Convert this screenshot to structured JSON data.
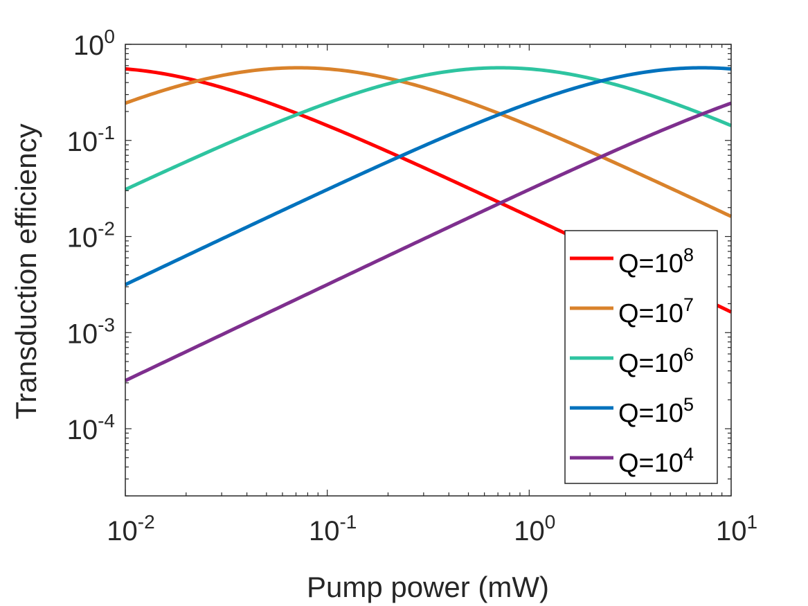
{
  "chart_data": {
    "type": "line",
    "title": "",
    "xlabel": "Pump power (mW)",
    "ylabel": "Transduction efficiency",
    "xscale": "log",
    "yscale": "log",
    "xlim": [
      0.01,
      10
    ],
    "ylim": [
      2e-05,
      1
    ],
    "grid": false,
    "legend_location": "bottom-right",
    "x_ticks": [
      {
        "value": 0.01,
        "base": "10",
        "exp": "-2"
      },
      {
        "value": 0.1,
        "base": "10",
        "exp": "-1"
      },
      {
        "value": 1,
        "base": "10",
        "exp": "0"
      },
      {
        "value": 10,
        "base": "10",
        "exp": "1"
      }
    ],
    "y_ticks": [
      {
        "value": 1,
        "base": "10",
        "exp": "0"
      },
      {
        "value": 0.1,
        "base": "10",
        "exp": "-1"
      },
      {
        "value": 0.01,
        "base": "10",
        "exp": "-2"
      },
      {
        "value": 0.001,
        "base": "10",
        "exp": "-3"
      },
      {
        "value": 0.0001,
        "base": "10",
        "exp": "-4"
      }
    ],
    "curve_model": "eta(P) = 0.57 * 4r/(1+r)^2, r = P/P_opt",
    "series": [
      {
        "name": "Q=10^8",
        "label_base": "Q=10",
        "label_exp": "8",
        "color": "#ff0000",
        "peak": 0.57,
        "p_opt": 0.0072
      },
      {
        "name": "Q=10^7",
        "label_base": "Q=10",
        "label_exp": "7",
        "color": "#d9822b",
        "peak": 0.57,
        "p_opt": 0.072
      },
      {
        "name": "Q=10^6",
        "label_base": "Q=10",
        "label_exp": "6",
        "color": "#2ec4a0",
        "peak": 0.57,
        "p_opt": 0.72
      },
      {
        "name": "Q=10^5",
        "label_base": "Q=10",
        "label_exp": "5",
        "color": "#0072bd",
        "peak": 0.57,
        "p_opt": 7.2
      },
      {
        "name": "Q=10^4",
        "label_base": "Q=10",
        "label_exp": "4",
        "color": "#7e2f8e",
        "peak": 0.57,
        "p_opt": 72
      }
    ]
  }
}
